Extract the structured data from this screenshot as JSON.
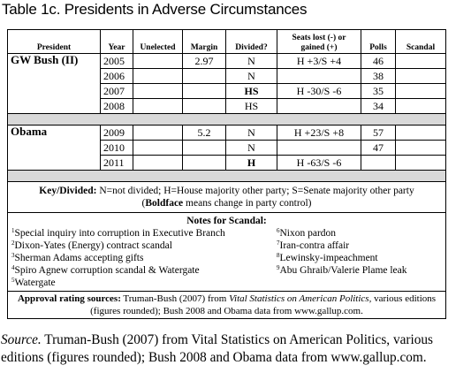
{
  "title": "Table 1c. Presidents in Adverse Circumstances",
  "table": {
    "headers": [
      "President",
      "Year",
      "Unelected",
      "Margin",
      "Divided?",
      "Seats lost (-) or gained (+)",
      "Polls",
      "Scandal"
    ],
    "groups": [
      {
        "president": "GW Bush (II)",
        "rows": [
          {
            "year": "2005",
            "margin": "2.97",
            "divided": "N",
            "seats": "H +3/S +4",
            "polls": "46"
          },
          {
            "year": "2006",
            "divided": "N",
            "polls": "38"
          },
          {
            "year": "2007",
            "divided": "HS",
            "divided_bold": true,
            "seats": "H -30/S -6",
            "polls": "35"
          },
          {
            "year": "2008",
            "divided": "HS",
            "polls": "34"
          }
        ]
      },
      {
        "president": "Obama",
        "rows": [
          {
            "year": "2009",
            "margin": "5.2",
            "divided": "N",
            "seats": "H +23/S +8",
            "polls": "57"
          },
          {
            "year": "2010",
            "divided": "N",
            "polls": "47"
          },
          {
            "year": "2011",
            "divided": "H",
            "divided_bold": true,
            "seats": "H -63/S -6"
          }
        ]
      }
    ],
    "key": {
      "label": "Key/Divided:",
      "text": " N=not divided; H=House majority other party; S=Senate majority other party",
      "open": "(",
      "bold": "Boldface",
      "close": " means change in party control)"
    },
    "notes": {
      "title": "Notes for Scandal:",
      "left": [
        {
          "num": "1",
          "text": "Special inquiry into corruption in Executive Branch"
        },
        {
          "num": "2",
          "text": "Dixon-Yates (Energy) contract scandal"
        },
        {
          "num": "3",
          "text": "Sherman Adams accepting gifts"
        },
        {
          "num": "4",
          "text": "Spiro Agnew corruption scandal & Watergate"
        },
        {
          "num": "5",
          "text": "Watergate"
        }
      ],
      "right": [
        {
          "num": "6",
          "text": "Nixon pardon"
        },
        {
          "num": "7",
          "text": "Iran-contra affair"
        },
        {
          "num": "8",
          "text": "Lewinsky-impeachment"
        },
        {
          "num": "9",
          "text": "Abu Ghraib/Valerie Plame leak"
        }
      ]
    },
    "approval": {
      "label": "Approval rating sources:",
      "text1": "  Truman-Bush (2007) from ",
      "italic": "Vital Statistics on American Politics,",
      "text2": " various editions (figures rounded); Bush 2008 and Obama data from www.gallup.com."
    }
  },
  "source": {
    "label": "Source.",
    "text": "  Truman-Bush (2007) from Vital Statistics on American Politics, various editions (figures rounded); Bush 2008 and Obama data from www.gallup.com."
  }
}
